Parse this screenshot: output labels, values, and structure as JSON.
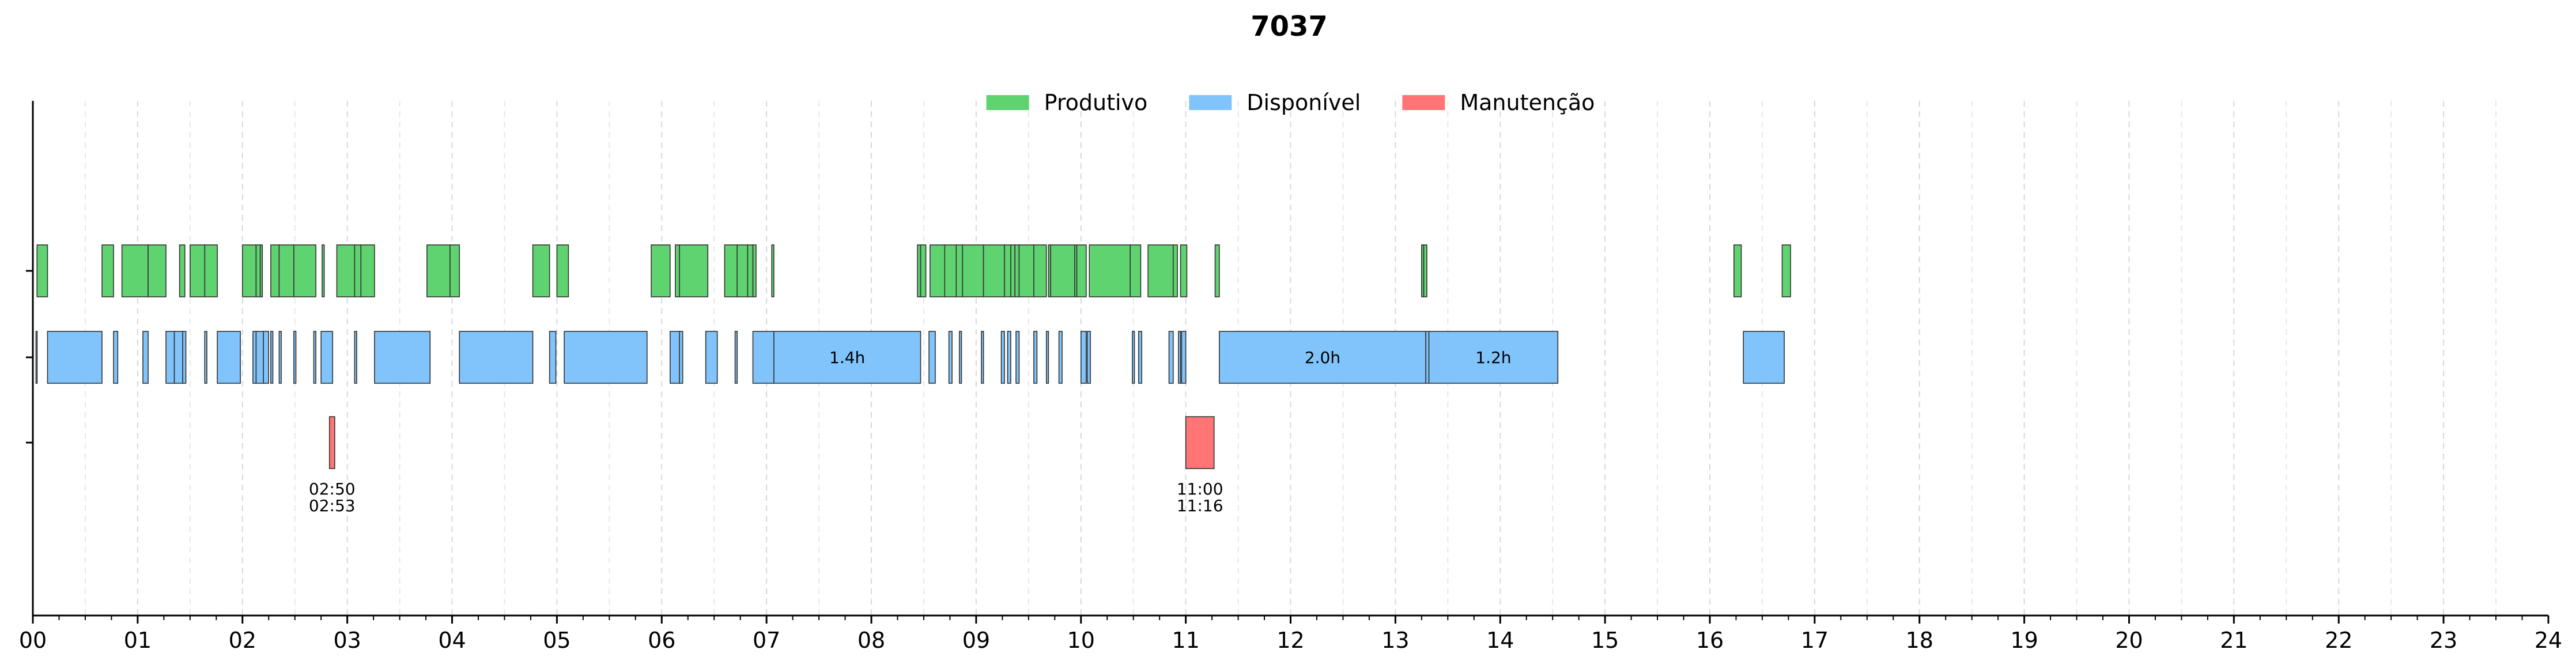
{
  "chart_data": {
    "type": "gantt",
    "title": "7037",
    "x_unit": "hour",
    "xlim": [
      0,
      24
    ],
    "x_tick_labels": [
      "00",
      "01",
      "02",
      "03",
      "04",
      "05",
      "06",
      "07",
      "08",
      "09",
      "10",
      "11",
      "12",
      "13",
      "14",
      "15",
      "16",
      "17",
      "18",
      "19",
      "20",
      "21",
      "22",
      "23",
      "24"
    ],
    "grid": "vertical dashed every 0.5h",
    "legend_position": "top-center",
    "rows": [
      "Produtivo",
      "Disponível",
      "Manutenção"
    ],
    "series": [
      {
        "name": "Produtivo",
        "color": "#5fd36f",
        "intervals": [
          [
            0.04,
            0.14
          ],
          [
            0.66,
            0.77
          ],
          [
            0.85,
            1.1
          ],
          [
            1.1,
            1.27
          ],
          [
            1.4,
            1.45
          ],
          [
            1.5,
            1.64
          ],
          [
            1.64,
            1.76
          ],
          [
            2.0,
            2.13
          ],
          [
            2.13,
            2.17
          ],
          [
            2.17,
            2.19
          ],
          [
            2.27,
            2.35
          ],
          [
            2.35,
            2.49
          ],
          [
            2.49,
            2.7
          ],
          [
            2.76,
            2.78
          ],
          [
            2.9,
            3.07
          ],
          [
            3.07,
            3.13
          ],
          [
            3.13,
            3.26
          ],
          [
            3.76,
            3.98
          ],
          [
            3.98,
            4.07
          ],
          [
            4.77,
            4.93
          ],
          [
            5.0,
            5.11
          ],
          [
            5.9,
            6.08
          ],
          [
            6.13,
            6.17
          ],
          [
            6.17,
            6.44
          ],
          [
            6.6,
            6.72
          ],
          [
            6.72,
            6.82
          ],
          [
            6.82,
            6.87
          ],
          [
            6.87,
            6.9
          ],
          [
            7.05,
            7.07
          ],
          [
            8.44,
            8.47
          ],
          [
            8.47,
            8.52
          ],
          [
            8.56,
            8.7
          ],
          [
            8.7,
            8.81
          ],
          [
            8.81,
            8.87
          ],
          [
            8.87,
            9.07
          ],
          [
            9.07,
            9.27
          ],
          [
            9.27,
            9.33
          ],
          [
            9.33,
            9.37
          ],
          [
            9.37,
            9.41
          ],
          [
            9.41,
            9.55
          ],
          [
            9.55,
            9.67
          ],
          [
            9.69,
            9.71
          ],
          [
            9.71,
            9.94
          ],
          [
            9.94,
            9.96
          ],
          [
            9.96,
            10.05
          ],
          [
            10.08,
            10.47
          ],
          [
            10.47,
            10.57
          ],
          [
            10.64,
            10.88
          ],
          [
            10.88,
            10.92
          ],
          [
            10.95,
            11.01
          ],
          [
            11.28,
            11.32
          ],
          [
            13.25,
            13.27
          ],
          [
            13.27,
            13.3
          ],
          [
            16.23,
            16.3
          ],
          [
            16.69,
            16.77
          ]
        ]
      },
      {
        "name": "Disponível",
        "color": "#80c4fb",
        "intervals": [
          [
            0.03,
            0.04
          ],
          [
            0.14,
            0.66
          ],
          [
            0.77,
            0.81
          ],
          [
            1.05,
            1.1
          ],
          [
            1.27,
            1.35
          ],
          [
            1.35,
            1.43
          ],
          [
            1.43,
            1.46
          ],
          [
            1.64,
            1.66
          ],
          [
            1.76,
            1.98
          ],
          [
            2.1,
            2.13
          ],
          [
            2.13,
            2.2
          ],
          [
            2.2,
            2.25
          ],
          [
            2.27,
            2.29
          ],
          [
            2.35,
            2.37
          ],
          [
            2.49,
            2.51
          ],
          [
            2.68,
            2.7
          ],
          [
            2.75,
            2.86
          ],
          [
            3.07,
            3.09
          ],
          [
            3.26,
            3.79
          ],
          [
            4.07,
            4.77
          ],
          [
            4.93,
            4.99
          ],
          [
            5.07,
            5.86
          ],
          [
            6.08,
            6.17
          ],
          [
            6.17,
            6.2
          ],
          [
            6.42,
            6.53
          ],
          [
            6.7,
            6.72
          ],
          [
            6.87,
            7.07
          ],
          [
            7.07,
            8.47
          ],
          [
            8.55,
            8.61
          ],
          [
            8.74,
            8.77
          ],
          [
            8.84,
            8.86
          ],
          [
            9.05,
            9.07
          ],
          [
            9.24,
            9.27
          ],
          [
            9.3,
            9.33
          ],
          [
            9.38,
            9.41
          ],
          [
            9.55,
            9.58
          ],
          [
            9.67,
            9.69
          ],
          [
            9.79,
            9.82
          ],
          [
            10.0,
            10.05
          ],
          [
            10.06,
            10.09
          ],
          [
            10.49,
            10.51
          ],
          [
            10.55,
            10.58
          ],
          [
            10.84,
            10.88
          ],
          [
            10.93,
            10.95
          ],
          [
            10.96,
            11.0
          ],
          [
            11.32,
            13.29
          ],
          [
            13.29,
            13.32
          ],
          [
            13.32,
            14.55
          ],
          [
            16.32,
            16.71
          ]
        ],
        "labels": [
          {
            "interval_index": 27,
            "text": "1.4h"
          },
          {
            "interval_index": 45,
            "text": "2.0h"
          },
          {
            "interval_index": 47,
            "text": "1.2h"
          }
        ]
      },
      {
        "name": "Manutenção",
        "color": "#ff7575",
        "intervals": [
          [
            2.83,
            2.88
          ],
          [
            11.0,
            11.27
          ]
        ],
        "labels": [
          {
            "interval_index": 0,
            "start": "02:50",
            "end": "02:53"
          },
          {
            "interval_index": 1,
            "start": "11:00",
            "end": "11:16"
          }
        ]
      }
    ]
  }
}
